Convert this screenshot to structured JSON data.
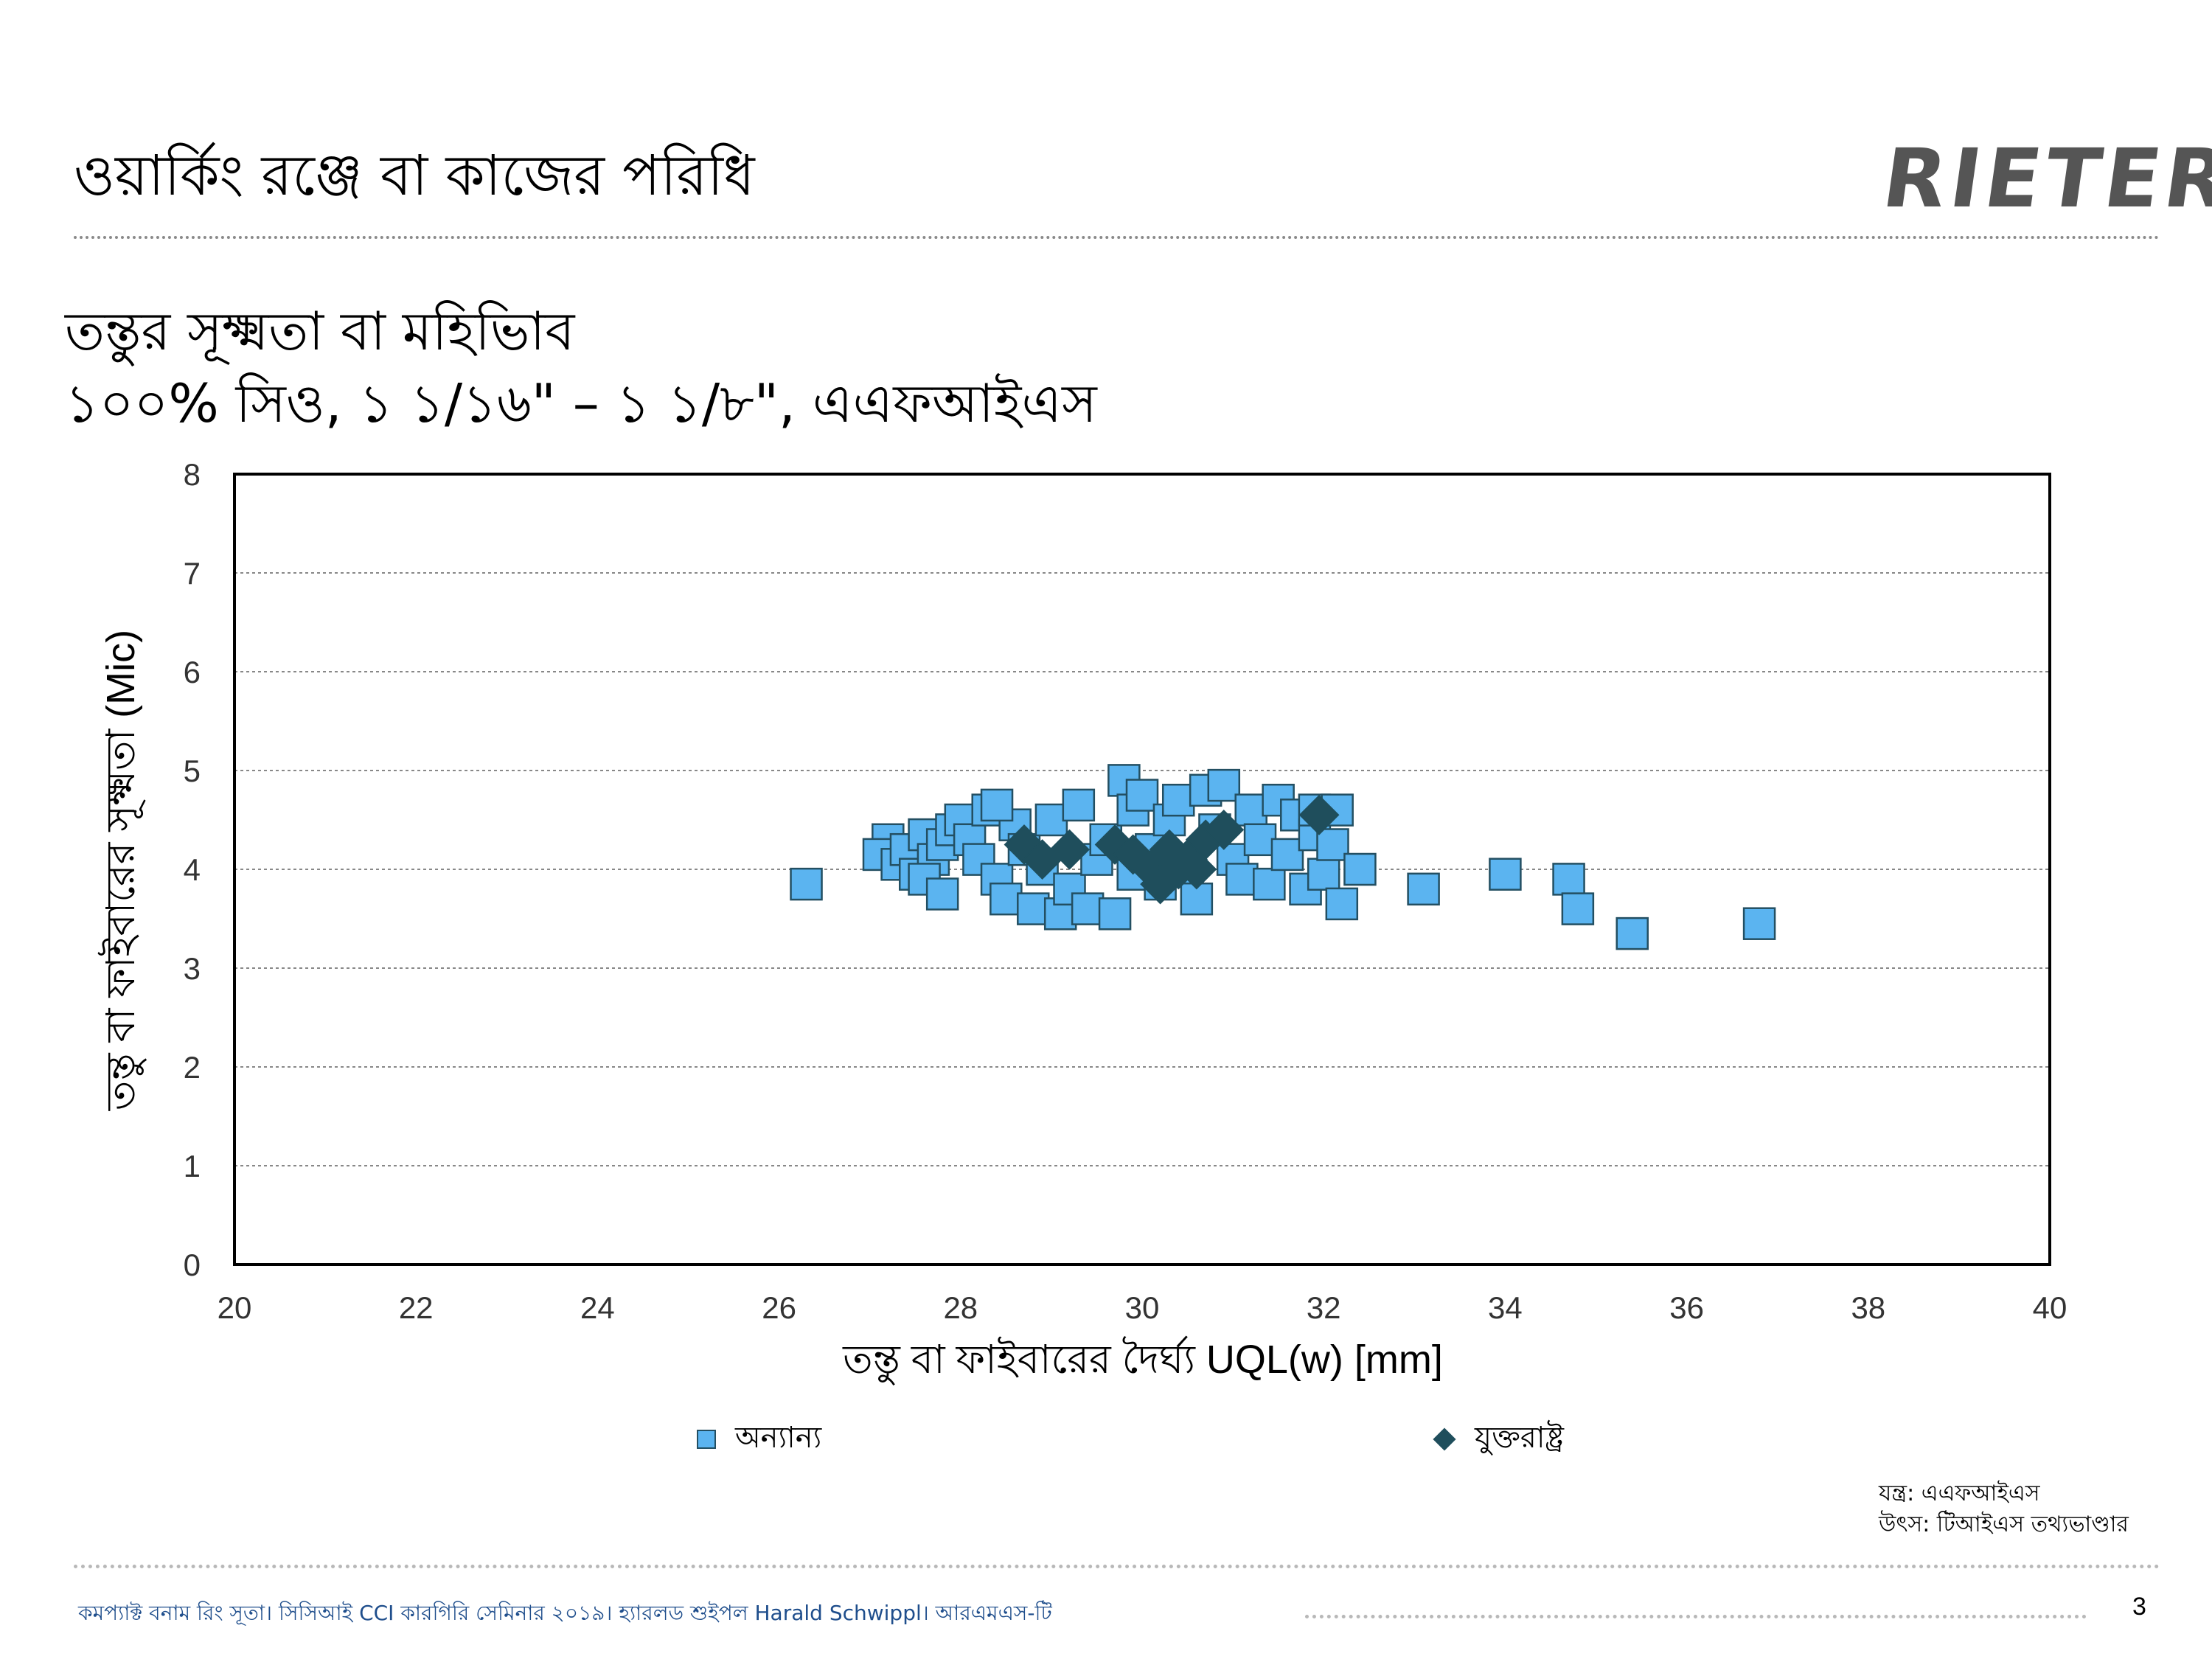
{
  "slide": {
    "title": "ওয়ার্কিং রঞ্জে বা কাজের পরিধি",
    "logo_text": "RIETER",
    "subtitle_line1": "তন্তুর সূক্ষ্মতা বা মহিভিাব",
    "subtitle_line2": "১০০% সিও, ১ ১/১৬\" – ১ ১/৮\", এএফআইএস",
    "page_number": "3"
  },
  "legend": {
    "others": "অন্যান্য",
    "usa": "যুক্তরাষ্ট্র"
  },
  "source": {
    "line1": "যন্ত্র: এএফআইএস",
    "line2": "উৎস: টিআইএস তথ্যভাণ্ডার"
  },
  "footer": {
    "text": "কমপ্যাক্ট বনাম রিং সূতা। সিসিআই CCI কারগিরি সেমিনার ২০১৯। হ্যারলড শুইপল Harald Schwippl। আরএমএস-টি"
  },
  "colors": {
    "others_fill": "#5bb4f0",
    "others_stroke": "#234f62",
    "usa_fill": "#1f4e5c",
    "grid": "#888888"
  },
  "chart_data": {
    "type": "scatter",
    "xlabel": "তন্তু বা ফাইবারের দৈর্ঘ্য UQL(w) [mm]",
    "ylabel": "তন্তু বা ফাইবারের সূক্ষ্মতা (Mic)",
    "xlim": [
      20,
      40
    ],
    "ylim": [
      0,
      8
    ],
    "x_ticks": [
      "20",
      "22",
      "24",
      "26",
      "28",
      "30",
      "32",
      "34",
      "36",
      "38",
      "40"
    ],
    "y_ticks": [
      "0",
      "1",
      "2",
      "3",
      "4",
      "5",
      "6",
      "7",
      "8"
    ],
    "grid": "horizontal-dotted",
    "legend_position": "bottom",
    "series": [
      {
        "name": "অন্যান্য",
        "marker": "square",
        "points": [
          [
            26.3,
            3.85
          ],
          [
            27.2,
            4.3
          ],
          [
            27.1,
            4.15
          ],
          [
            27.3,
            4.05
          ],
          [
            27.4,
            4.2
          ],
          [
            27.5,
            3.95
          ],
          [
            27.6,
            4.35
          ],
          [
            27.7,
            4.1
          ],
          [
            27.8,
            4.25
          ],
          [
            27.9,
            4.4
          ],
          [
            27.6,
            3.9
          ],
          [
            27.8,
            3.75
          ],
          [
            28.0,
            4.5
          ],
          [
            28.1,
            4.3
          ],
          [
            28.2,
            4.1
          ],
          [
            28.3,
            4.6
          ],
          [
            28.4,
            3.9
          ],
          [
            28.5,
            3.7
          ],
          [
            28.6,
            4.45
          ],
          [
            28.4,
            4.65
          ],
          [
            28.7,
            4.2
          ],
          [
            28.8,
            3.6
          ],
          [
            28.9,
            4.0
          ],
          [
            29.0,
            4.5
          ],
          [
            29.1,
            3.55
          ],
          [
            29.2,
            3.8
          ],
          [
            29.3,
            4.65
          ],
          [
            29.4,
            3.6
          ],
          [
            29.5,
            4.1
          ],
          [
            29.6,
            4.3
          ],
          [
            29.7,
            3.55
          ],
          [
            29.8,
            4.9
          ],
          [
            29.9,
            4.6
          ],
          [
            29.9,
            3.95
          ],
          [
            30.0,
            4.75
          ],
          [
            30.1,
            4.2
          ],
          [
            30.2,
            3.85
          ],
          [
            30.3,
            4.5
          ],
          [
            30.4,
            4.7
          ],
          [
            30.5,
            4.0
          ],
          [
            30.6,
            3.7
          ],
          [
            30.7,
            4.8
          ],
          [
            30.8,
            4.4
          ],
          [
            30.9,
            4.85
          ],
          [
            31.0,
            4.1
          ],
          [
            31.1,
            3.9
          ],
          [
            31.2,
            4.6
          ],
          [
            31.3,
            4.3
          ],
          [
            31.4,
            3.85
          ],
          [
            31.5,
            4.7
          ],
          [
            31.6,
            4.15
          ],
          [
            31.7,
            4.55
          ],
          [
            31.8,
            3.8
          ],
          [
            31.9,
            4.35
          ],
          [
            31.9,
            4.6
          ],
          [
            32.0,
            3.95
          ],
          [
            32.1,
            4.25
          ],
          [
            32.15,
            4.6
          ],
          [
            32.2,
            3.65
          ],
          [
            32.4,
            4.0
          ],
          [
            33.1,
            3.8
          ],
          [
            34.0,
            3.95
          ],
          [
            34.7,
            3.9
          ],
          [
            34.8,
            3.6
          ],
          [
            35.4,
            3.35
          ],
          [
            36.8,
            3.45
          ]
        ]
      },
      {
        "name": "যুক্তরাষ্ট্র",
        "marker": "diamond",
        "points": [
          [
            28.7,
            4.25
          ],
          [
            28.9,
            4.1
          ],
          [
            29.2,
            4.2
          ],
          [
            29.7,
            4.25
          ],
          [
            29.9,
            4.15
          ],
          [
            30.1,
            4.0
          ],
          [
            30.2,
            3.85
          ],
          [
            30.3,
            4.2
          ],
          [
            30.4,
            4.0
          ],
          [
            30.5,
            4.1
          ],
          [
            30.6,
            4.0
          ],
          [
            30.7,
            4.3
          ],
          [
            30.9,
            4.4
          ],
          [
            31.95,
            4.55
          ]
        ]
      }
    ]
  }
}
